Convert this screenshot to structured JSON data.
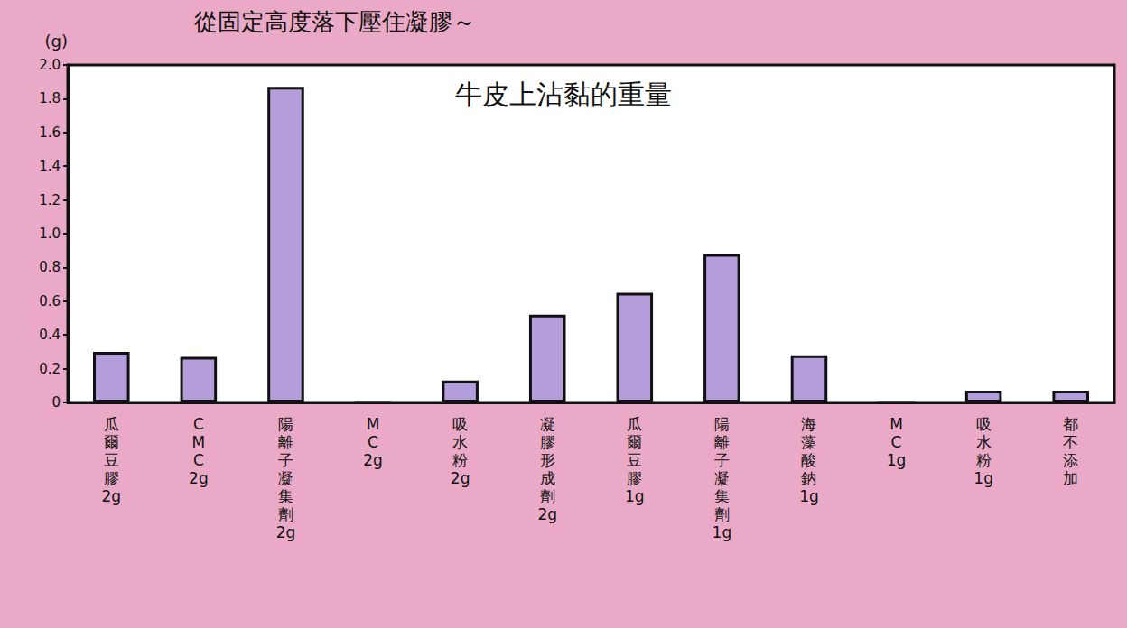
{
  "chart_data": {
    "type": "bar",
    "title": "從固定高度落下壓住凝膠～",
    "subtitle": "牛皮上沾黏的重量",
    "ylabel": "(g)",
    "categories": [
      "瓜爾豆膠 2g",
      "CMC 2g",
      "陽離子凝集劑 2g",
      "MC 2g",
      "吸水粉 2g",
      "凝膠形成劑 2g",
      "瓜爾豆膠 1g",
      "陽離子凝集劑 1g",
      "海藻酸鈉 1g",
      "MC 1g",
      "吸水粉 1g",
      "都不添加"
    ],
    "values": [
      0.3,
      0.27,
      1.87,
      0,
      0.13,
      0.52,
      0.65,
      0.88,
      0.28,
      0,
      0.07,
      0.07
    ],
    "color": "#b39ddb",
    "ylim": [
      0,
      2
    ],
    "yticks": [
      0,
      0.2,
      0.4,
      0.6,
      0.8,
      {
        "value": 1,
        "label": "1.0"
      },
      1.2,
      1.4,
      1.6,
      1.8,
      {
        "value": 2,
        "label": "2.0"
      }
    ],
    "grid": false
  }
}
